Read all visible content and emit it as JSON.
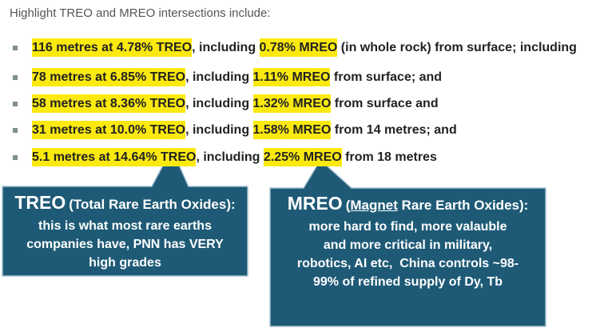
{
  "heading": "Highlight TREO and MREO intersections include:",
  "bullets": [
    {
      "treo": "116 metres at 4.78% TREO",
      "mid": ", including ",
      "mreo": "0.78% MREO",
      "rest": " (in whole rock) from surface; including"
    },
    {
      "treo": "78 metres at 6.85% TREO",
      "mid": ", including ",
      "mreo": "1.11% MREO",
      "rest": " from surface; and"
    },
    {
      "treo": "58 metres at 8.36% TREO",
      "mid": ", including ",
      "mreo": "1.32% MREO",
      "rest": " from surface and"
    },
    {
      "treo": "31 metres at 10.0% TREO",
      "mid": ", including ",
      "mreo": "1.58% MREO",
      "rest": " from 14 metres; and"
    },
    {
      "treo": "5.1 metres at 14.64% TREO",
      "mid": ", including ",
      "mreo": "2.25% MREO",
      "rest": " from 18 metres"
    }
  ],
  "callouts": [
    {
      "title": "TREO",
      "subtitle": [
        "(Total Rare Earth Oxides):"
      ],
      "body": [
        "this is what most rare earths",
        "companies have, PNN has VERY",
        "high grades"
      ]
    },
    {
      "title": "MREO",
      "subtitle": [
        "(",
        "Magnet",
        " Rare Earth Oxides):"
      ],
      "body": [
        "more hard to find, more valauble",
        "and more critical in military,",
        "robotics, AI etc,  China controls ~98-",
        "99% of refined supply of Dy, Tb"
      ]
    }
  ]
}
